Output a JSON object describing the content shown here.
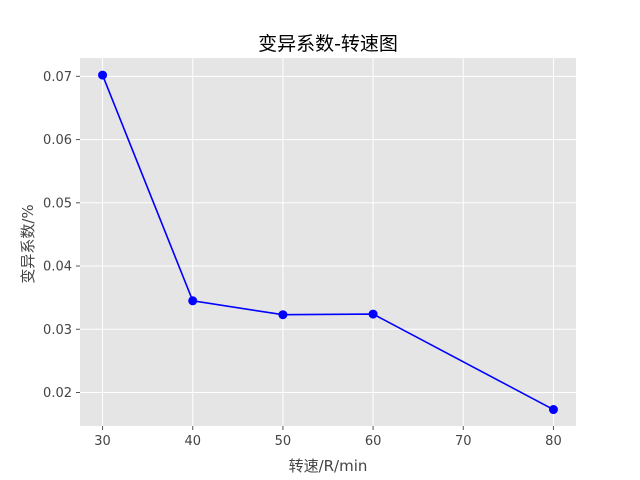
{
  "chart_data": {
    "type": "line",
    "title": "变异系数-转速图",
    "xlabel": "转速/R/min",
    "ylabel": "变异系数/%",
    "x": [
      30,
      40,
      50,
      60,
      80
    ],
    "series": [
      {
        "values": [
          0.0702,
          0.0345,
          0.0323,
          0.0324,
          0.0173
        ],
        "color": "#0000ff",
        "marker": "circle"
      }
    ],
    "xlim": [
      27.5,
      82.5
    ],
    "ylim": [
      0.0147,
      0.0729
    ],
    "xticks": [
      30,
      40,
      50,
      60,
      70,
      80
    ],
    "yticks": [
      0.02,
      0.03,
      0.04,
      0.05,
      0.06,
      0.07
    ],
    "xtick_labels": [
      "30",
      "40",
      "50",
      "60",
      "70",
      "80"
    ],
    "ytick_labels": [
      "0.02",
      "0.03",
      "0.04",
      "0.05",
      "0.06",
      "0.07"
    ],
    "grid": true,
    "plot_background": "#e5e5e5",
    "grid_color": "#ffffff"
  }
}
